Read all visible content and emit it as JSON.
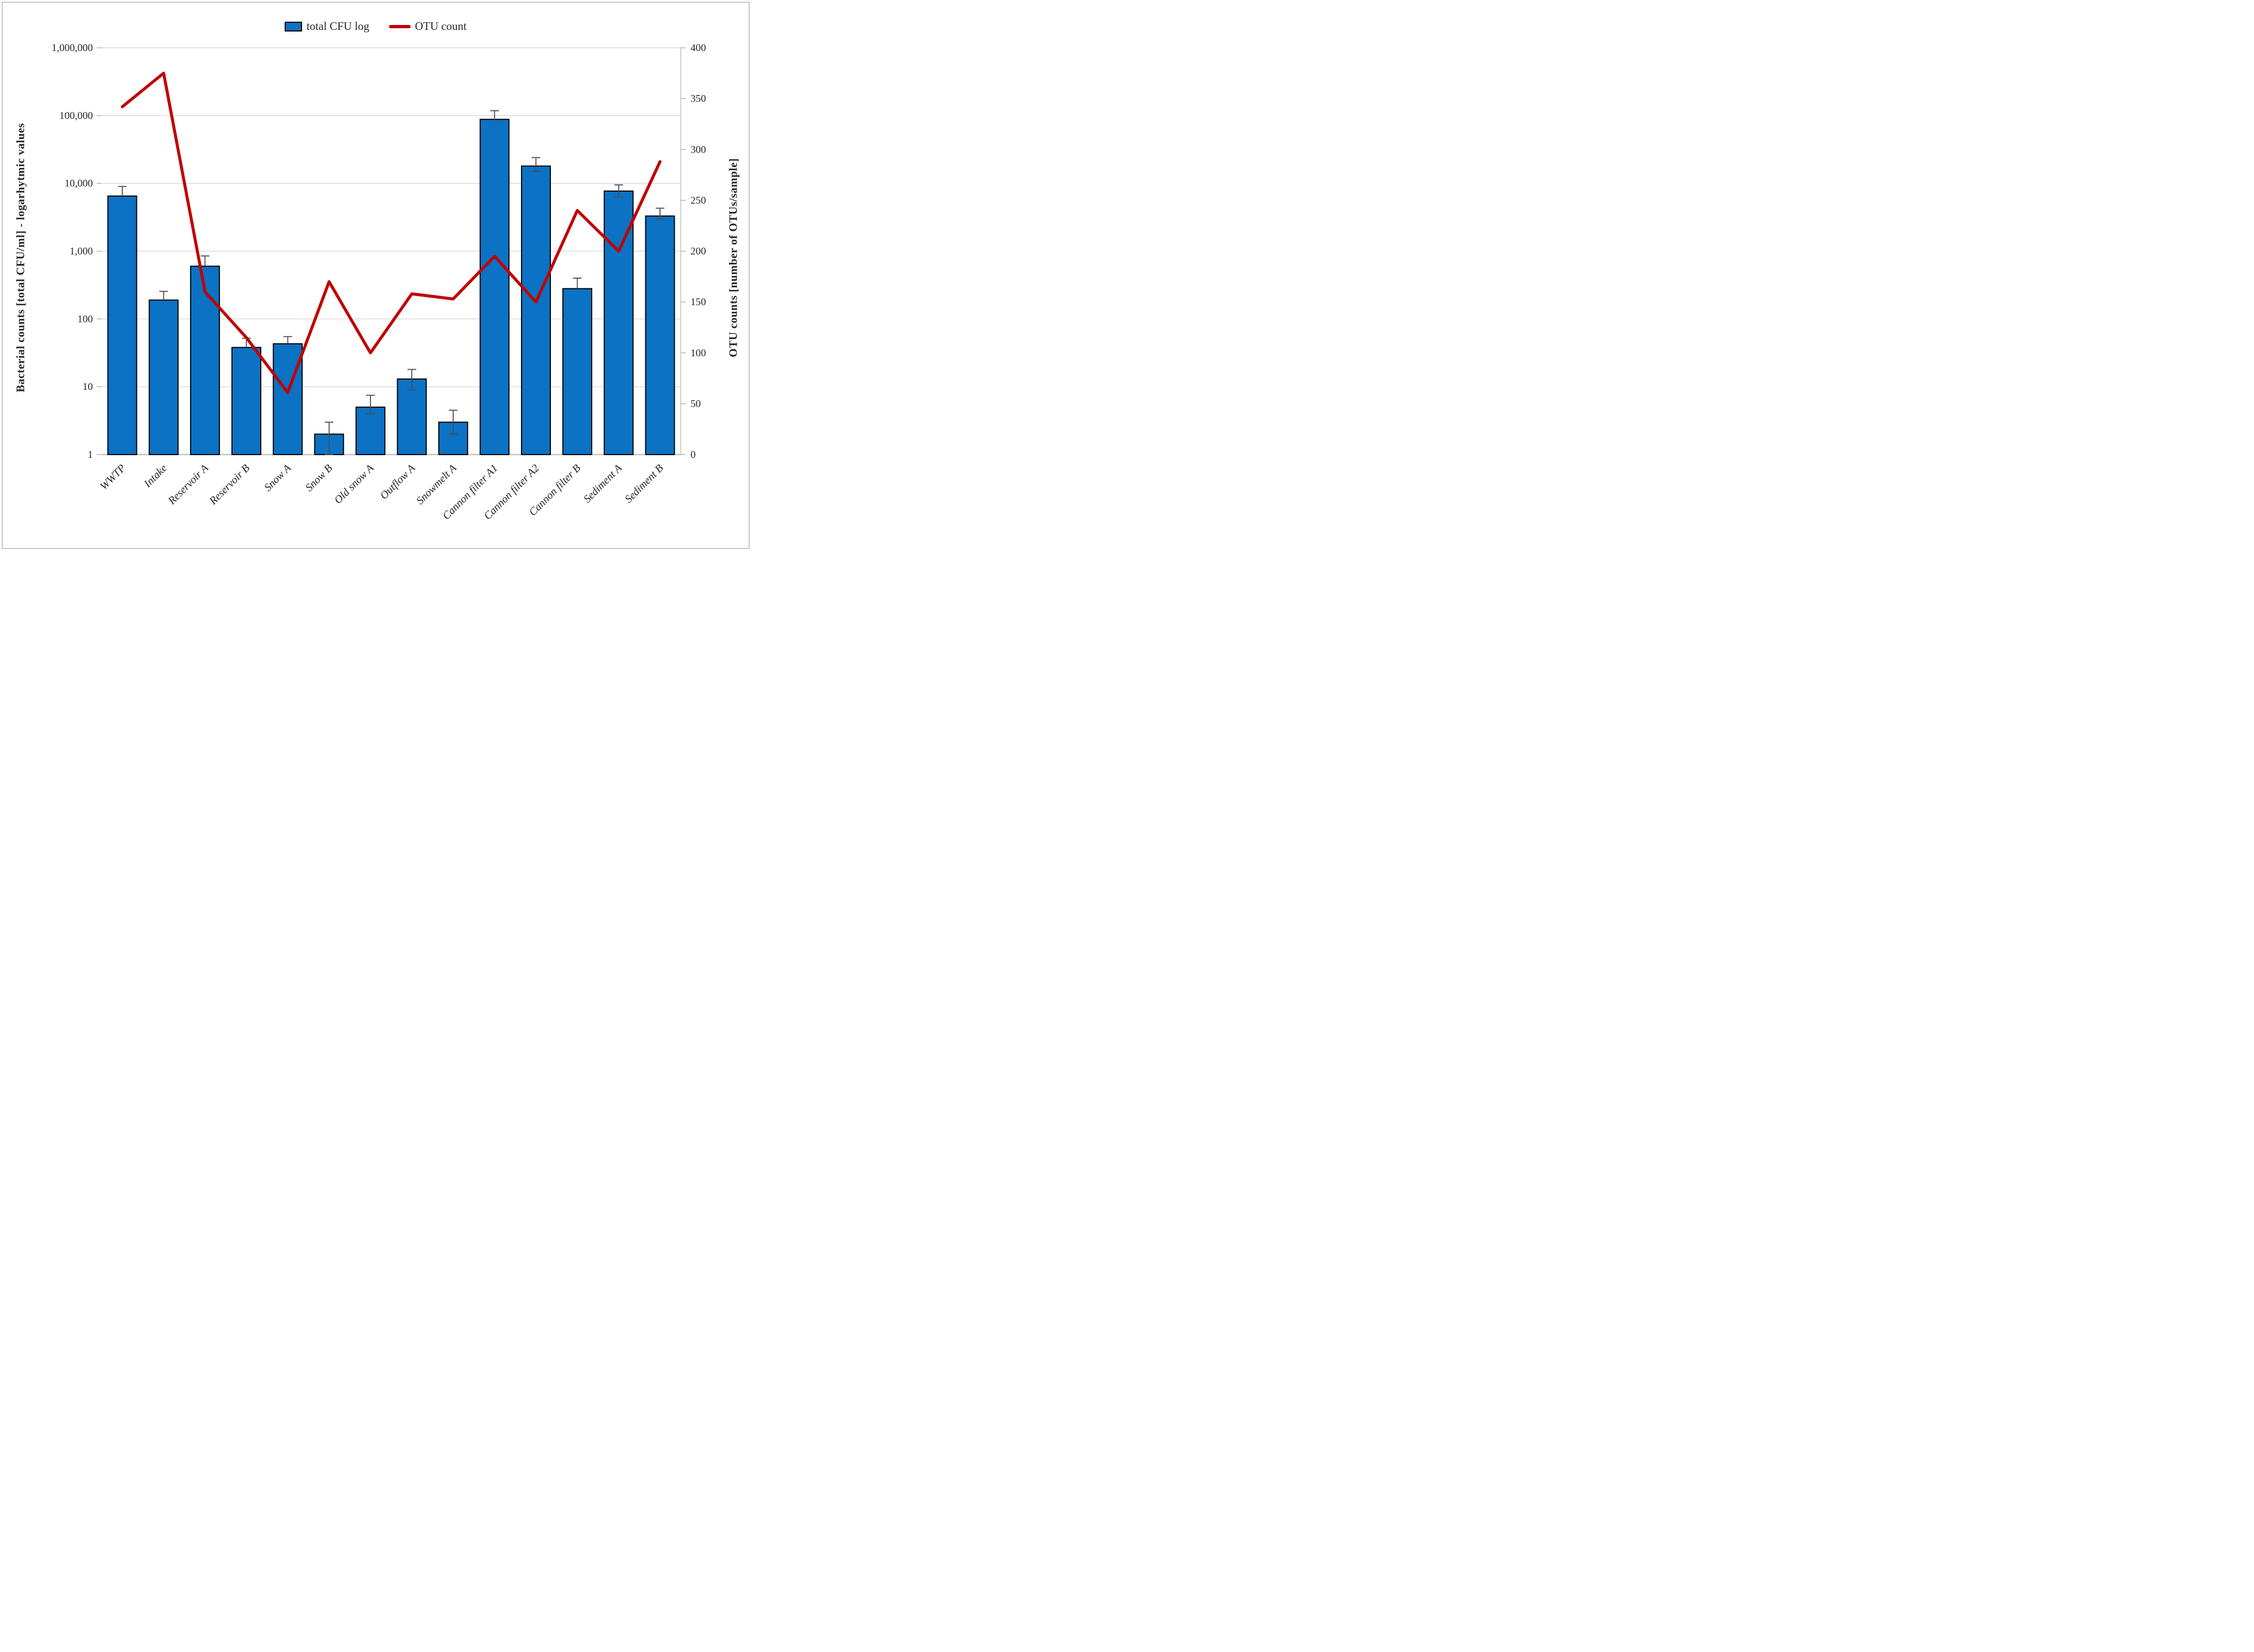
{
  "legend": {
    "items": [
      {
        "label": "total CFU log",
        "marker": "bar-swatch"
      },
      {
        "label": "OTU count",
        "marker": "line-swatch"
      }
    ]
  },
  "axes": {
    "left": {
      "title": "Bacterial counts [total CFU/ml] - logarhytmic values"
    },
    "right": {
      "title": "OTU counts [number of OTUs/sample]"
    }
  },
  "colors": {
    "bar_fill": "#0b72c4",
    "bar_stroke": "#000000",
    "line": "#c00000",
    "grid": "#d9d9d9",
    "baseline": "#c3c3c3",
    "axis_line": "#d0d0d0",
    "tick": "#b0b0b0",
    "error": "#4d4d4d",
    "text": "#262626"
  },
  "chart_data": {
    "type": "bar+line",
    "categories": [
      "WWTP",
      "Intake",
      "Reservoir A",
      "Reservoir B",
      "Snow A",
      "Snow B",
      "Old snow A",
      "Outflow A",
      "Snowmelt A",
      "Cannon filter A1",
      "Cannon filter A2",
      "Cannon filter B",
      "Sediment A",
      "Sediment B"
    ],
    "series": [
      {
        "name": "total CFU log",
        "type": "bar",
        "axis": "left",
        "values": [
          6500,
          190,
          600,
          38,
          43,
          2,
          5,
          13,
          3,
          88000,
          18000,
          280,
          7700,
          3300
        ],
        "error_high": [
          9000,
          255,
          850,
          52,
          55,
          3,
          7.5,
          18,
          4.5,
          118000,
          24000,
          400,
          9500,
          4300
        ],
        "error_low": [
          null,
          null,
          null,
          null,
          null,
          1,
          4,
          9,
          2,
          null,
          15000,
          null,
          6300,
          3000
        ]
      },
      {
        "name": "OTU count",
        "type": "line",
        "axis": "right",
        "values": [
          342,
          375,
          160,
          115,
          61,
          170,
          100,
          158,
          153,
          195,
          150,
          240,
          200,
          288
        ]
      }
    ],
    "left_axis": {
      "label": "Bacterial counts [total CFU/ml] - logarhytmic values",
      "scale": "log",
      "range": [
        1,
        1000000
      ],
      "tick_labels": [
        "1",
        "10",
        "100",
        "1,000",
        "10,000",
        "100,000",
        "1,000,000"
      ]
    },
    "right_axis": {
      "label": "OTU counts [number of OTUs/sample]",
      "scale": "linear",
      "range": [
        0,
        400
      ],
      "step": 50
    },
    "grid": "horizontal log decades",
    "legend_position": "top-center",
    "category_label_style": "italic, rotated 45deg"
  }
}
